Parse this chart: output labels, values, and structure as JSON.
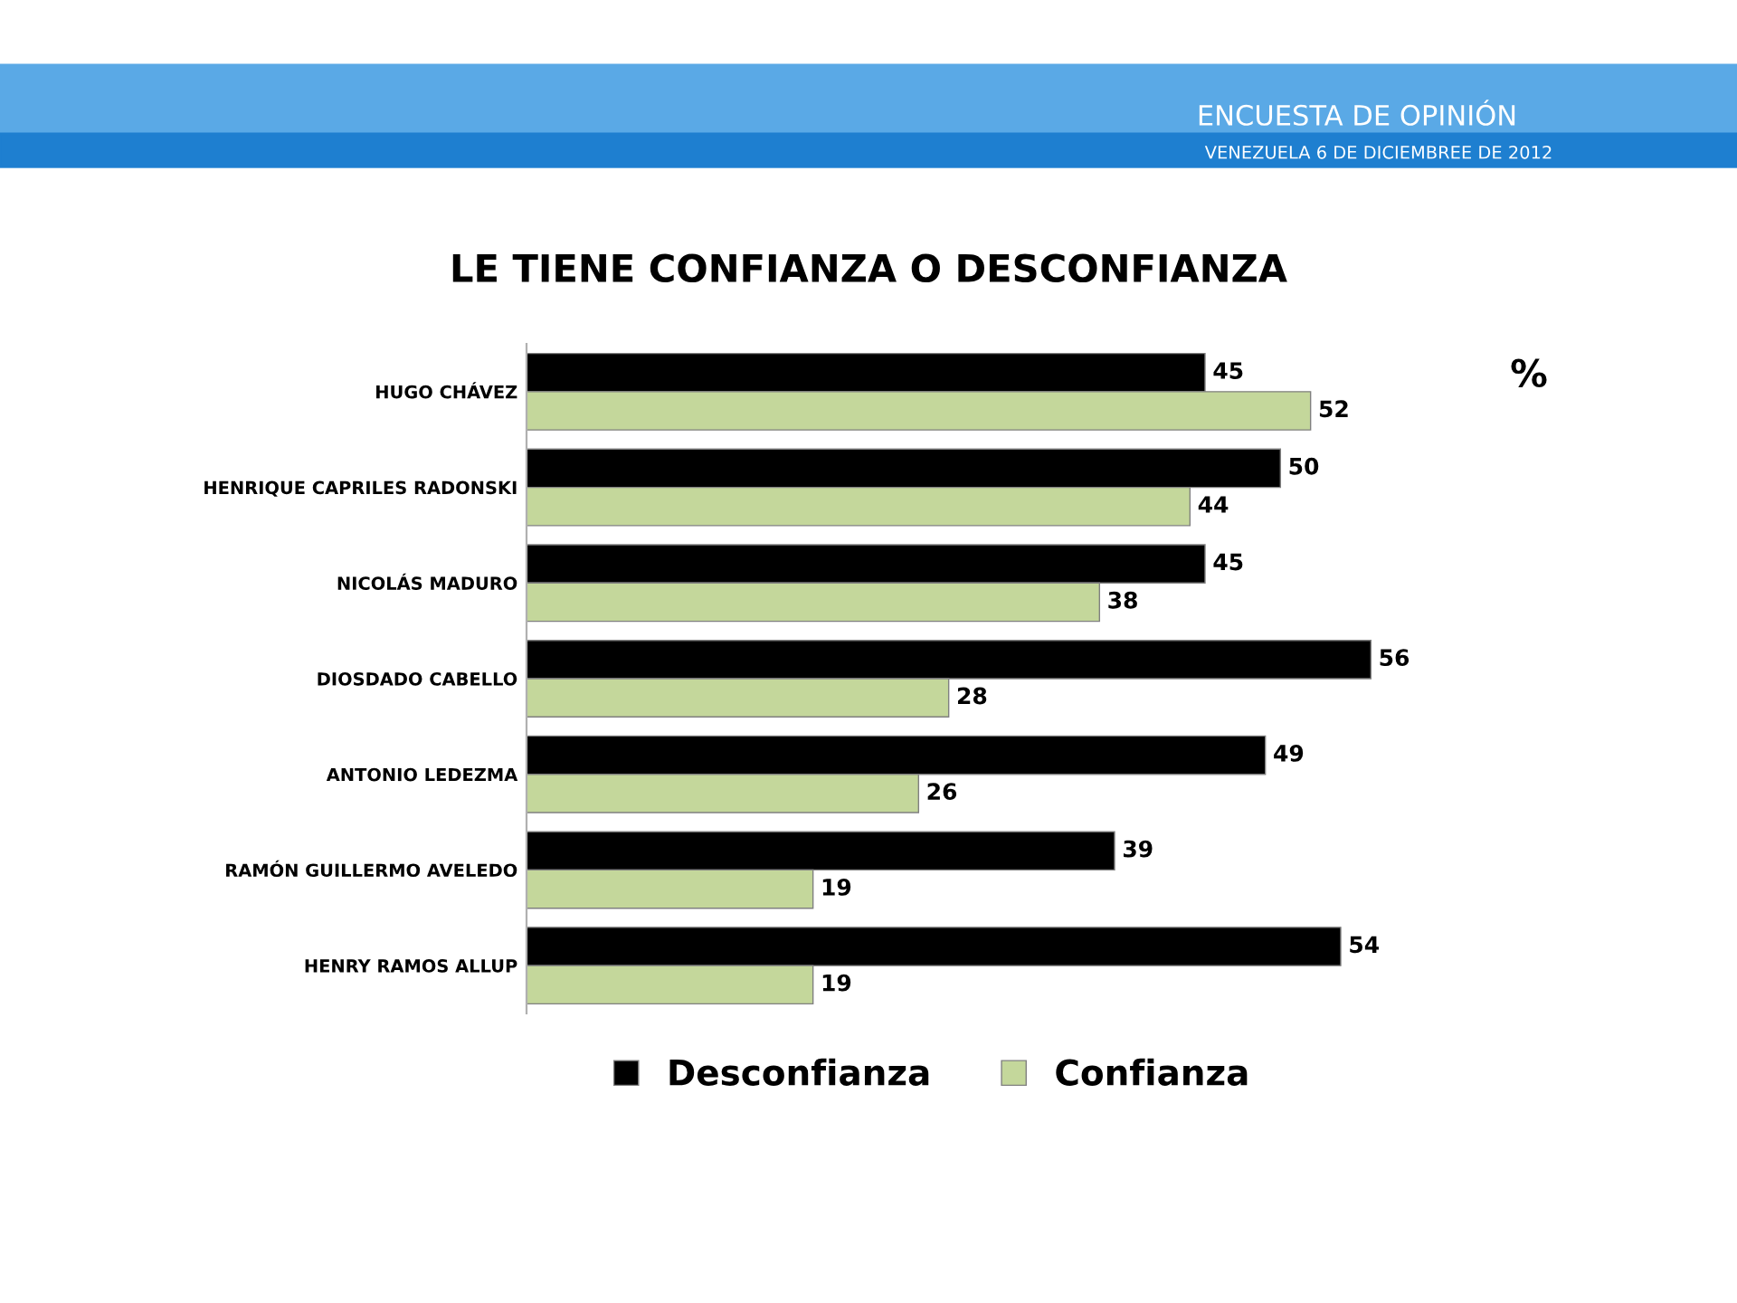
{
  "chart_data": {
    "type": "bar",
    "orientation": "horizontal",
    "title": "LE TIENE CONFIANZA O DESCONFIANZA",
    "annotations": [
      "ENCUESTA DE OPINIÓN",
      "VENEZUELA 6 DE DICIEMBREE DE 2012",
      "%"
    ],
    "categories": [
      "HUGO CHÁVEZ",
      "HENRIQUE CAPRILES RADONSKI",
      "NICOLÁS MADURO",
      "DIOSDADO CABELLO",
      "ANTONIO LEDEZMA",
      "RAMÓN GUILLERMO AVELEDO",
      "HENRY RAMOS ALLUP"
    ],
    "series": [
      {
        "name": "Desconfianza",
        "color": "#000000",
        "values": [
          45,
          50,
          45,
          56,
          49,
          39,
          54
        ]
      },
      {
        "name": "Confianza",
        "color": "#c4d79b",
        "values": [
          52,
          44,
          38,
          28,
          26,
          19,
          19
        ]
      }
    ],
    "data_labels": true,
    "legend": "bottom",
    "grid": false
  }
}
